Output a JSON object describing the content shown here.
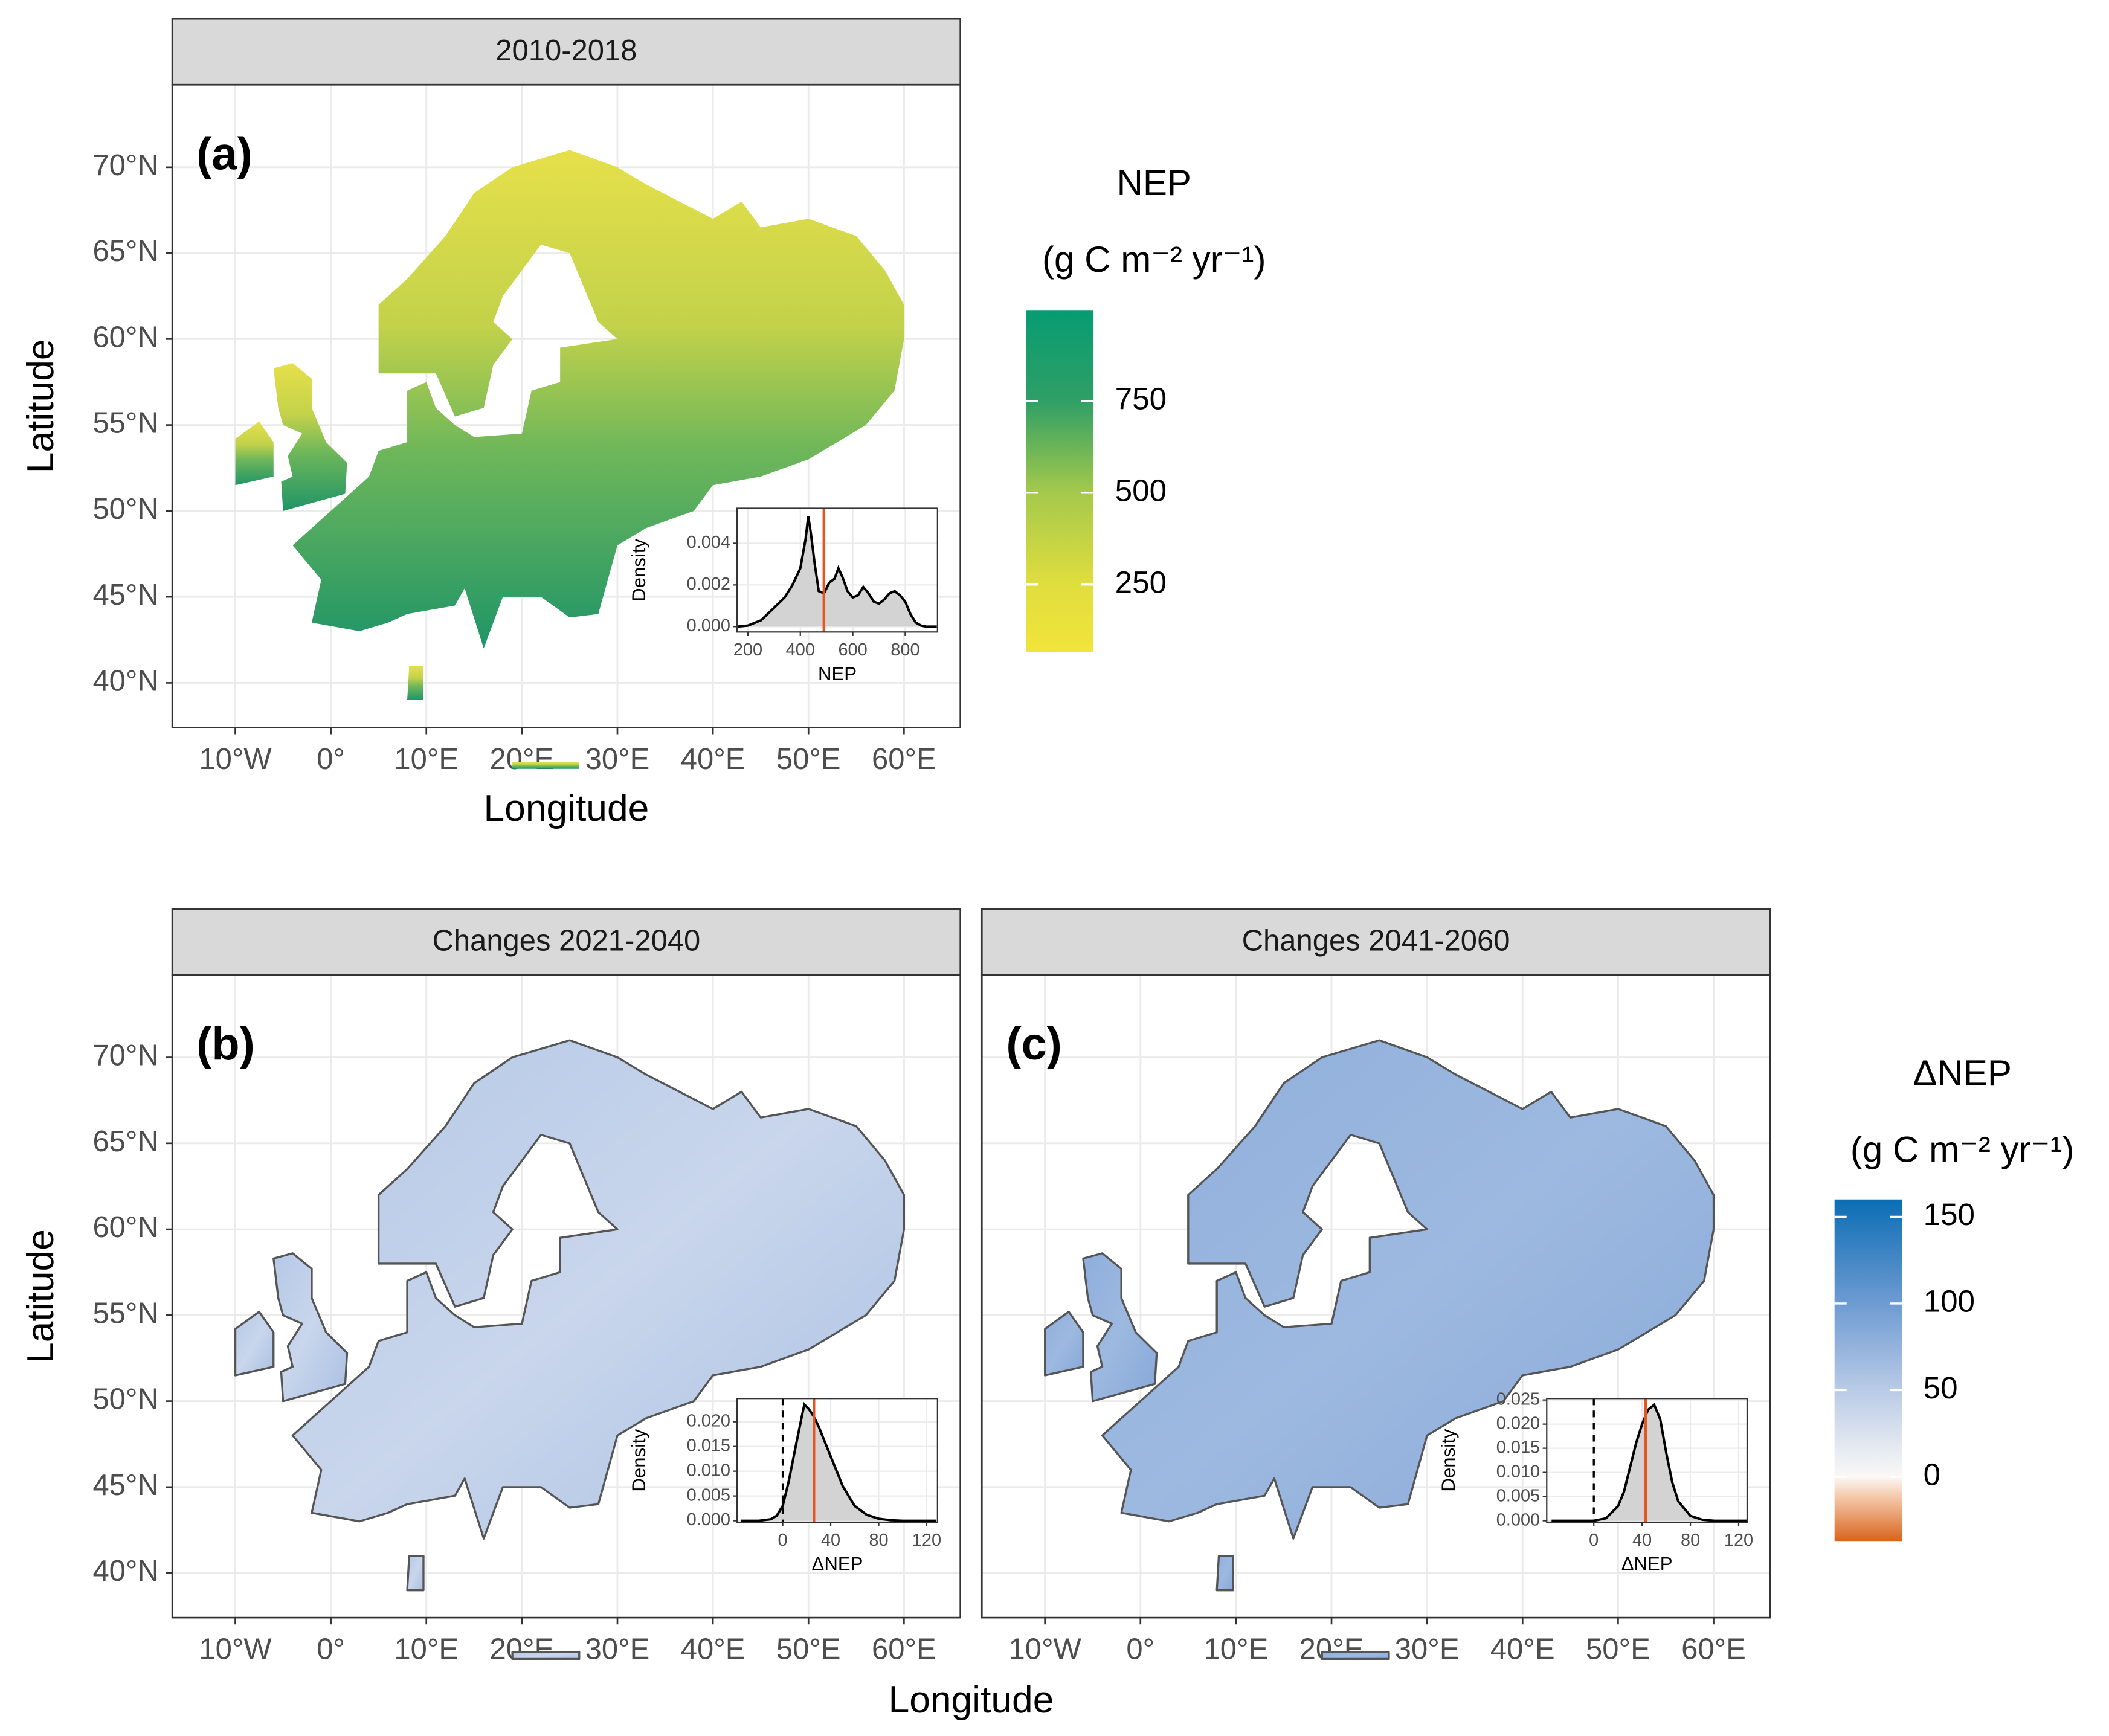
{
  "x_axis_title": "Longitude",
  "y_axis_title": "Latitude",
  "xlim": [
    -16.6,
    65.9
  ],
  "ylim": [
    37.4,
    74.8
  ],
  "lon_ticks": [
    {
      "value": -10,
      "label": "10°W"
    },
    {
      "value": 0,
      "label": "0°"
    },
    {
      "value": 10,
      "label": "10°E"
    },
    {
      "value": 20,
      "label": "20°E"
    },
    {
      "value": 30,
      "label": "30°E"
    },
    {
      "value": 40,
      "label": "40°E"
    },
    {
      "value": 50,
      "label": "50°E"
    },
    {
      "value": 60,
      "label": "60°E"
    }
  ],
  "lat_ticks": [
    {
      "value": 40,
      "label": "40°N"
    },
    {
      "value": 45,
      "label": "45°N"
    },
    {
      "value": 50,
      "label": "50°N"
    },
    {
      "value": 55,
      "label": "55°N"
    },
    {
      "value": 60,
      "label": "60°N"
    },
    {
      "value": 65,
      "label": "65°N"
    },
    {
      "value": 70,
      "label": "70°N"
    }
  ],
  "panels": [
    {
      "strip": "2010-2018",
      "tag": "(a)",
      "legend": 0,
      "inset": {
        "type": "area",
        "x_label": "NEP",
        "y_label": "Density",
        "color": "#e8541e",
        "x": [
          160,
          200,
          250,
          300,
          340,
          370,
          400,
          420,
          430,
          440,
          455,
          470,
          490,
          510,
          530,
          545,
          560,
          580,
          600,
          620,
          640,
          660,
          680,
          700,
          720,
          740,
          760,
          780,
          800,
          820,
          840,
          860,
          880,
          900,
          920
        ],
        "values": [
          0,
          5e-05,
          0.0003,
          0.0009,
          0.0014,
          0.002,
          0.0028,
          0.0042,
          0.0053,
          0.0045,
          0.003,
          0.0017,
          0.0016,
          0.0021,
          0.0023,
          0.0028,
          0.0024,
          0.0017,
          0.0014,
          0.0015,
          0.0019,
          0.0016,
          0.0012,
          0.0011,
          0.0013,
          0.0016,
          0.0017,
          0.0015,
          0.0012,
          0.0006,
          0.0002,
          5e-05,
          0,
          0,
          0
        ],
        "xlim": [
          159,
          923
        ],
        "ylim": [
          -0.00026,
          0.00568
        ],
        "xticks": [
          200,
          400,
          600,
          800
        ],
        "yticks": [
          {
            "value": 0,
            "label": "0.000"
          },
          {
            "value": 0.002,
            "label": "0.002"
          },
          {
            "value": 0.004,
            "label": "0.004"
          }
        ],
        "mean_line": 490
      }
    },
    {
      "strip": "Changes 2021-2040",
      "tag": "(b)",
      "legend": 1,
      "inset": {
        "type": "area",
        "x_label": "ΔNEP",
        "y_label": "Density",
        "color": "#e8541e",
        "x": [
          -35,
          -20,
          -10,
          -5,
          0,
          5,
          10,
          15,
          18,
          22,
          26,
          30,
          35,
          40,
          50,
          60,
          70,
          80,
          90,
          100,
          115,
          128
        ],
        "values": [
          0,
          0,
          0.0003,
          0.001,
          0.003,
          0.008,
          0.014,
          0.02,
          0.0235,
          0.0225,
          0.021,
          0.019,
          0.016,
          0.013,
          0.007,
          0.003,
          0.0012,
          0.0004,
          0.0001,
          0,
          0,
          0
        ],
        "xlim": [
          -38,
          129
        ],
        "ylim": [
          -0.0003,
          0.0247
        ],
        "xticks": [
          0,
          40,
          80,
          120
        ],
        "yticks": [
          {
            "value": 0,
            "label": "0.000"
          },
          {
            "value": 0.005,
            "label": "0.005"
          },
          {
            "value": 0.01,
            "label": "0.010"
          },
          {
            "value": 0.015,
            "label": "0.015"
          },
          {
            "value": 0.02,
            "label": "0.020"
          }
        ],
        "mean_line": 26,
        "ref_line": 0
      }
    },
    {
      "strip": "Changes 2041-2060",
      "tag": "(c)",
      "legend": 1,
      "inset": {
        "type": "area",
        "x_label": "ΔNEP",
        "y_label": "Density",
        "color": "#e8541e",
        "x": [
          -35,
          -10,
          0,
          10,
          20,
          25,
          30,
          35,
          40,
          45,
          50,
          55,
          60,
          65,
          70,
          80,
          90,
          100,
          115,
          128
        ],
        "values": [
          0,
          0,
          0,
          0.0005,
          0.003,
          0.006,
          0.011,
          0.016,
          0.02,
          0.023,
          0.024,
          0.021,
          0.014,
          0.008,
          0.004,
          0.001,
          0.0002,
          0,
          0,
          0
        ],
        "xlim": [
          -39,
          127
        ],
        "ylim": [
          -0.0003,
          0.0253
        ],
        "xticks": [
          0,
          40,
          80,
          120
        ],
        "yticks": [
          {
            "value": 0,
            "label": "0.000"
          },
          {
            "value": 0.005,
            "label": "0.005"
          },
          {
            "value": 0.01,
            "label": "0.010"
          },
          {
            "value": 0.015,
            "label": "0.015"
          },
          {
            "value": 0.02,
            "label": "0.020"
          },
          {
            "value": 0.025,
            "label": "0.025"
          }
        ],
        "mean_line": 43,
        "ref_line": 0
      }
    }
  ],
  "legends": [
    {
      "title": "NEP",
      "unit": "(g C m⁻² yr⁻¹)",
      "lim": [
        66,
        996
      ],
      "ticks": [
        250,
        500,
        750
      ],
      "stops": [
        {
          "value": 66,
          "color": "#f2e43a"
        },
        {
          "value": 250,
          "color": "#e0de3e"
        },
        {
          "value": 500,
          "color": "#a5c94b"
        },
        {
          "value": 750,
          "color": "#2f9f66"
        },
        {
          "value": 996,
          "color": "#079c72"
        }
      ]
    },
    {
      "title": "ΔNEP",
      "unit": "(g C m⁻² yr⁻¹)",
      "lim": [
        -37,
        160
      ],
      "ticks": [
        0,
        50,
        100,
        150
      ],
      "stops": [
        {
          "value": -37,
          "color": "#d8641c"
        },
        {
          "value": -10,
          "color": "#f6cfb4"
        },
        {
          "value": 0,
          "color": "#fbf8f6"
        },
        {
          "value": 50,
          "color": "#b9cbe6"
        },
        {
          "value": 100,
          "color": "#6e9bd2"
        },
        {
          "value": 160,
          "color": "#0b6db4"
        }
      ]
    }
  ]
}
